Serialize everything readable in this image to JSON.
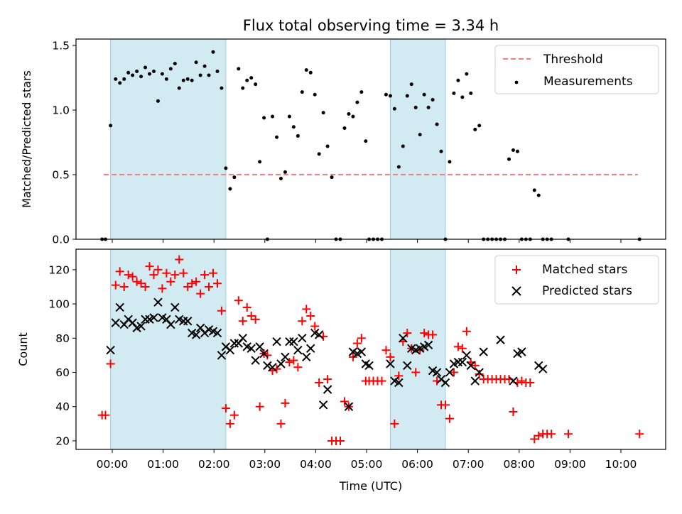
{
  "chart_data": {
    "title": "Flux total observing time = 3.34 h",
    "shaded_intervals": [
      [
        "23:58",
        "02:14"
      ],
      [
        "05:28",
        "06:33"
      ]
    ],
    "top": {
      "type": "scatter",
      "ylabel": "Matched/Predicted stars",
      "ylim": [
        0,
        1.55
      ],
      "yticks": [
        "0.0",
        "0.5",
        "1.0",
        "1.5"
      ],
      "threshold": {
        "name": "Threshold",
        "value": 0.5,
        "x_start": "23:50",
        "x_end": "10:20",
        "color": "#f08080"
      },
      "series": [
        {
          "name": "Measurements",
          "color": "#000000",
          "x": [
            "23:48",
            "23:52",
            "23:58",
            "00:04",
            "00:09",
            "00:14",
            "00:19",
            "00:24",
            "00:29",
            "00:34",
            "00:39",
            "00:44",
            "00:49",
            "00:54",
            "00:59",
            "01:04",
            "01:09",
            "01:14",
            "01:19",
            "01:24",
            "01:29",
            "01:34",
            "01:39",
            "01:44",
            "01:49",
            "01:54",
            "01:59",
            "02:04",
            "02:09",
            "02:14",
            "02:19",
            "02:24",
            "02:29",
            "02:34",
            "02:39",
            "02:44",
            "02:49",
            "02:54",
            "02:59",
            "03:03",
            "03:09",
            "03:14",
            "03:19",
            "03:24",
            "03:29",
            "03:34",
            "03:39",
            "03:44",
            "03:49",
            "03:54",
            "03:59",
            "04:04",
            "04:09",
            "04:14",
            "04:19",
            "04:24",
            "04:29",
            "04:34",
            "04:39",
            "04:44",
            "04:49",
            "04:54",
            "04:59",
            "05:03",
            "05:08",
            "05:13",
            "05:18",
            "05:23",
            "05:28",
            "05:33",
            "05:38",
            "05:43",
            "05:48",
            "05:53",
            "05:58",
            "06:03",
            "06:08",
            "06:13",
            "06:18",
            "06:23",
            "06:28",
            "06:33",
            "06:38",
            "06:43",
            "06:48",
            "06:53",
            "06:58",
            "07:03",
            "07:08",
            "07:13",
            "07:18",
            "07:23",
            "07:28",
            "07:33",
            "07:38",
            "07:43",
            "07:48",
            "07:53",
            "07:58",
            "08:03",
            "08:08",
            "08:13",
            "08:18",
            "08:23",
            "08:28",
            "08:33",
            "08:38",
            "08:58",
            "10:22"
          ],
          "y": [
            0,
            0,
            0.88,
            1.24,
            1.21,
            1.24,
            1.29,
            1.27,
            1.3,
            1.26,
            1.33,
            1.28,
            1.3,
            1.07,
            1.28,
            1.24,
            1.32,
            1.36,
            1.17,
            1.23,
            1.24,
            1.23,
            1.37,
            1.27,
            1.34,
            1.27,
            1.45,
            1.3,
            1.17,
            0.55,
            0.39,
            0.48,
            1.32,
            1.17,
            1.23,
            1.25,
            1.2,
            0.6,
            0.94,
            0,
            0.95,
            0.79,
            0.47,
            0.52,
            0.95,
            0.87,
            0.8,
            1.14,
            1.31,
            1.29,
            1.12,
            0.66,
            0.98,
            0.72,
            0.48,
            0,
            0,
            0.86,
            0.97,
            0.95,
            1.06,
            1.14,
            0.76,
            0,
            0,
            0,
            0,
            1.12,
            1.11,
            1.01,
            0.56,
            0.72,
            1.11,
            1.2,
            1.02,
            0.81,
            1.12,
            1.02,
            1.08,
            0.89,
            0.68,
            0,
            0.6,
            1.13,
            1.23,
            1.1,
            1.28,
            1.13,
            0.85,
            0.88,
            0,
            0,
            0,
            0,
            0,
            0,
            0.62,
            0.69,
            0.68,
            0,
            0,
            0,
            0.38,
            0.34,
            0,
            0,
            0,
            0,
            0
          ]
        }
      ]
    },
    "bottom": {
      "type": "scatter",
      "xlabel": "Time (UTC)",
      "ylabel": "Count",
      "ylim": [
        15,
        132
      ],
      "yticks": [
        "20",
        "40",
        "60",
        "80",
        "100",
        "120"
      ],
      "xticks": [
        "00:00",
        "01:00",
        "02:00",
        "03:00",
        "04:00",
        "05:00",
        "06:00",
        "07:00",
        "08:00",
        "09:00",
        "10:00"
      ],
      "series": [
        {
          "name": "Matched stars",
          "marker": "+",
          "color": "#ff0000",
          "x": [
            "23:48",
            "23:52",
            "23:58",
            "00:04",
            "00:09",
            "00:14",
            "00:19",
            "00:24",
            "00:29",
            "00:34",
            "00:39",
            "00:44",
            "00:49",
            "00:54",
            "00:59",
            "01:04",
            "01:09",
            "01:14",
            "01:19",
            "01:24",
            "01:29",
            "01:34",
            "01:39",
            "01:44",
            "01:49",
            "01:54",
            "01:59",
            "02:04",
            "02:09",
            "02:14",
            "02:19",
            "02:24",
            "02:29",
            "02:34",
            "02:39",
            "02:44",
            "02:49",
            "02:54",
            "02:59",
            "03:03",
            "03:09",
            "03:14",
            "03:19",
            "03:24",
            "03:29",
            "03:34",
            "03:39",
            "03:44",
            "03:49",
            "03:54",
            "03:59",
            "04:04",
            "04:09",
            "04:14",
            "04:19",
            "04:24",
            "04:29",
            "04:34",
            "04:39",
            "04:44",
            "04:49",
            "04:54",
            "04:59",
            "05:03",
            "05:08",
            "05:13",
            "05:18",
            "05:23",
            "05:28",
            "05:33",
            "05:38",
            "05:43",
            "05:48",
            "05:53",
            "05:58",
            "06:03",
            "06:08",
            "06:13",
            "06:18",
            "06:23",
            "06:28",
            "06:33",
            "06:38",
            "06:43",
            "06:48",
            "06:53",
            "06:58",
            "07:03",
            "07:08",
            "07:13",
            "07:18",
            "07:23",
            "07:28",
            "07:33",
            "07:38",
            "07:43",
            "07:48",
            "07:53",
            "07:58",
            "08:03",
            "08:08",
            "08:13",
            "08:18",
            "08:23",
            "08:28",
            "08:33",
            "08:38",
            "08:58",
            "10:22"
          ],
          "y": [
            35,
            35,
            65,
            111,
            119,
            110,
            117,
            116,
            113,
            112,
            110,
            122,
            117,
            120,
            109,
            118,
            113,
            117,
            126,
            118,
            110,
            112,
            113,
            106,
            117,
            110,
            118,
            112,
            96,
            39,
            30,
            35,
            102,
            90,
            98,
            93,
            91,
            40,
            71,
            70,
            61,
            62,
            30,
            42,
            66,
            67,
            63,
            90,
            97,
            93,
            87,
            54,
            81,
            56,
            20,
            20,
            20,
            43,
            40,
            69,
            77,
            80,
            55,
            55,
            55,
            55,
            55,
            73,
            69,
            30,
            58,
            78,
            83,
            74,
            60,
            73,
            83,
            82,
            82,
            55,
            41,
            41,
            33,
            60,
            75,
            74,
            84,
            66,
            64,
            59,
            56,
            56,
            56,
            56,
            56,
            56,
            56,
            37,
            54,
            55,
            54,
            54,
            21,
            23,
            24,
            24,
            24,
            24,
            24
          ]
        },
        {
          "name": "Predicted stars",
          "marker": "x",
          "color": "#000000",
          "x": [
            "23:58",
            "00:04",
            "00:09",
            "00:14",
            "00:19",
            "00:24",
            "00:29",
            "00:34",
            "00:39",
            "00:44",
            "00:49",
            "00:54",
            "00:59",
            "01:04",
            "01:09",
            "01:14",
            "01:19",
            "01:24",
            "01:29",
            "01:34",
            "01:39",
            "01:44",
            "01:49",
            "01:54",
            "01:59",
            "02:04",
            "02:09",
            "02:14",
            "02:19",
            "02:24",
            "02:29",
            "02:34",
            "02:39",
            "02:44",
            "02:49",
            "02:54",
            "02:59",
            "03:03",
            "03:09",
            "03:14",
            "03:19",
            "03:24",
            "03:29",
            "03:34",
            "03:39",
            "03:44",
            "03:49",
            "03:54",
            "03:59",
            "04:04",
            "04:09",
            "04:14",
            "04:39",
            "04:44",
            "04:49",
            "04:54",
            "04:59",
            "05:03",
            "05:28",
            "05:33",
            "05:38",
            "05:43",
            "05:48",
            "05:53",
            "05:58",
            "06:03",
            "06:08",
            "06:13",
            "06:18",
            "06:23",
            "06:28",
            "06:33",
            "06:38",
            "06:43",
            "06:48",
            "06:53",
            "06:58",
            "07:03",
            "07:08",
            "07:13",
            "07:18",
            "07:38",
            "07:53",
            "07:58",
            "08:03",
            "08:23",
            "08:28"
          ],
          "y": [
            73,
            89,
            98,
            88,
            91,
            89,
            86,
            87,
            91,
            91,
            92,
            101,
            92,
            91,
            88,
            98,
            91,
            90,
            90,
            83,
            82,
            86,
            83,
            85,
            84,
            83,
            70,
            75,
            73,
            77,
            77,
            80,
            75,
            74,
            67,
            75,
            71,
            64,
            63,
            78,
            65,
            69,
            78,
            78,
            73,
            80,
            69,
            74,
            83,
            82,
            41,
            50,
            40,
            72,
            71,
            72,
            65,
            64,
            65,
            55,
            54,
            80,
            64,
            74,
            73,
            74,
            75,
            76,
            61,
            60,
            56,
            54,
            60,
            65,
            66,
            66,
            70,
            64,
            55,
            60,
            72,
            79,
            55,
            71,
            72,
            64,
            62
          ]
        }
      ]
    }
  }
}
